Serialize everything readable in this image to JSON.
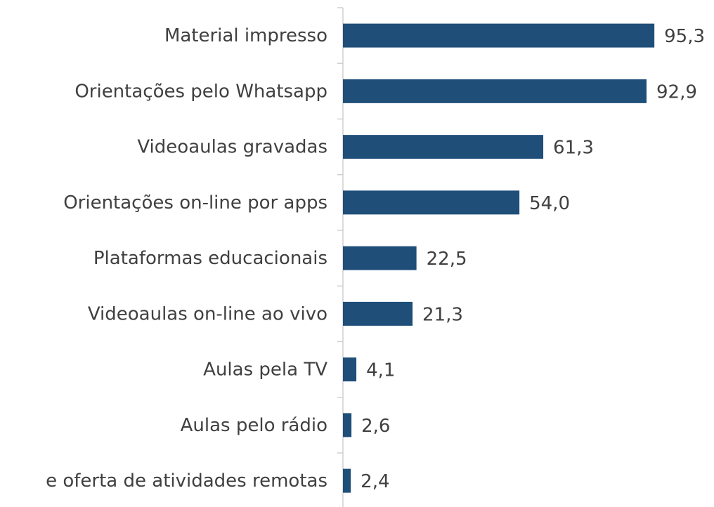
{
  "chart_data": {
    "type": "barh",
    "categories": [
      "Material impresso",
      "Orientações pelo Whatsapp",
      "Videoaulas gravadas",
      "Orientações on-line por apps",
      "Plataformas educacionais",
      "Videoaulas on-line ao vivo",
      "Aulas pela TV",
      "Aulas pelo rádio",
      "e oferta de atividades remotas"
    ],
    "values": [
      95.3,
      92.9,
      61.3,
      54.0,
      22.5,
      21.3,
      4.1,
      2.6,
      2.4
    ],
    "value_labels": [
      "95,3",
      "92,9",
      "61,3",
      "54,0",
      "22,5",
      "21,3",
      "4,1",
      "2,6",
      "2,4"
    ],
    "color": "#1f4e79",
    "xlim": [
      0,
      100
    ]
  }
}
